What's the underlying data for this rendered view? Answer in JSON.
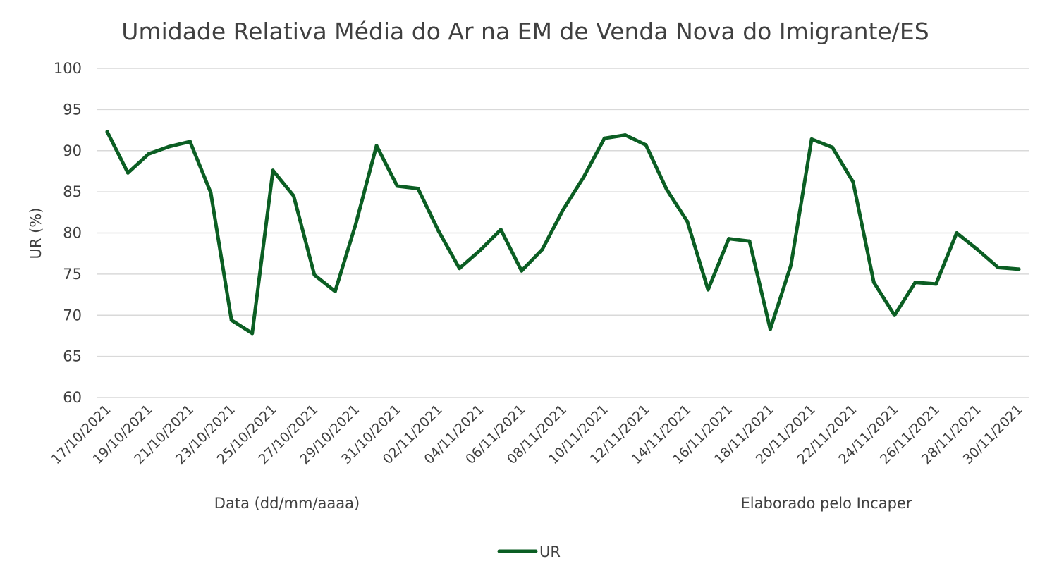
{
  "chart_data": {
    "type": "line",
    "title": "Umidade Relativa Média do Ar na EM de Venda Nova do Imigrante/ES",
    "xlabel": "Data (dd/mm/aaaa)",
    "ylabel": "UR (%)",
    "credit": "Elaborado pelo Incaper",
    "ylim": [
      60,
      100
    ],
    "yticks": [
      60,
      65,
      70,
      75,
      80,
      85,
      90,
      95,
      100
    ],
    "grid": true,
    "legend_position": "bottom",
    "x": [
      "17/10/2021",
      "18/10/2021",
      "19/10/2021",
      "20/10/2021",
      "21/10/2021",
      "22/10/2021",
      "23/10/2021",
      "24/10/2021",
      "25/10/2021",
      "26/10/2021",
      "27/10/2021",
      "28/10/2021",
      "29/10/2021",
      "30/10/2021",
      "31/10/2021",
      "01/11/2021",
      "02/11/2021",
      "03/11/2021",
      "04/11/2021",
      "05/11/2021",
      "06/11/2021",
      "07/11/2021",
      "08/11/2021",
      "09/11/2021",
      "10/11/2021",
      "11/11/2021",
      "12/11/2021",
      "13/11/2021",
      "14/11/2021",
      "15/11/2021",
      "16/11/2021",
      "17/11/2021",
      "18/11/2021",
      "19/11/2021",
      "20/11/2021",
      "21/11/2021",
      "22/11/2021",
      "23/11/2021",
      "24/11/2021",
      "25/11/2021",
      "26/11/2021",
      "27/11/2021",
      "28/11/2021",
      "29/11/2021",
      "30/11/2021"
    ],
    "x_tick_labels": [
      "17/10/2021",
      "19/10/2021",
      "21/10/2021",
      "23/10/2021",
      "25/10/2021",
      "27/10/2021",
      "29/10/2021",
      "31/10/2021",
      "02/11/2021",
      "04/11/2021",
      "06/11/2021",
      "08/11/2021",
      "10/11/2021",
      "12/11/2021",
      "14/11/2021",
      "16/11/2021",
      "18/11/2021",
      "20/11/2021",
      "22/11/2021",
      "24/11/2021",
      "26/11/2021",
      "28/11/2021",
      "30/11/2021"
    ],
    "series": [
      {
        "name": "UR",
        "color": "#0b5e23",
        "values": [
          92.3,
          87.3,
          89.6,
          90.5,
          91.1,
          84.9,
          69.4,
          67.8,
          87.6,
          84.5,
          74.9,
          72.9,
          81.1,
          90.6,
          85.7,
          85.4,
          80.2,
          75.7,
          77.9,
          80.4,
          75.4,
          78.0,
          82.8,
          86.8,
          91.5,
          91.9,
          90.7,
          85.3,
          81.4,
          73.1,
          79.3,
          79.0,
          68.3,
          76.1,
          91.4,
          90.4,
          86.2,
          74.0,
          70.0,
          74.0,
          73.8,
          80.0,
          78.0,
          75.8,
          75.6
        ]
      }
    ]
  }
}
